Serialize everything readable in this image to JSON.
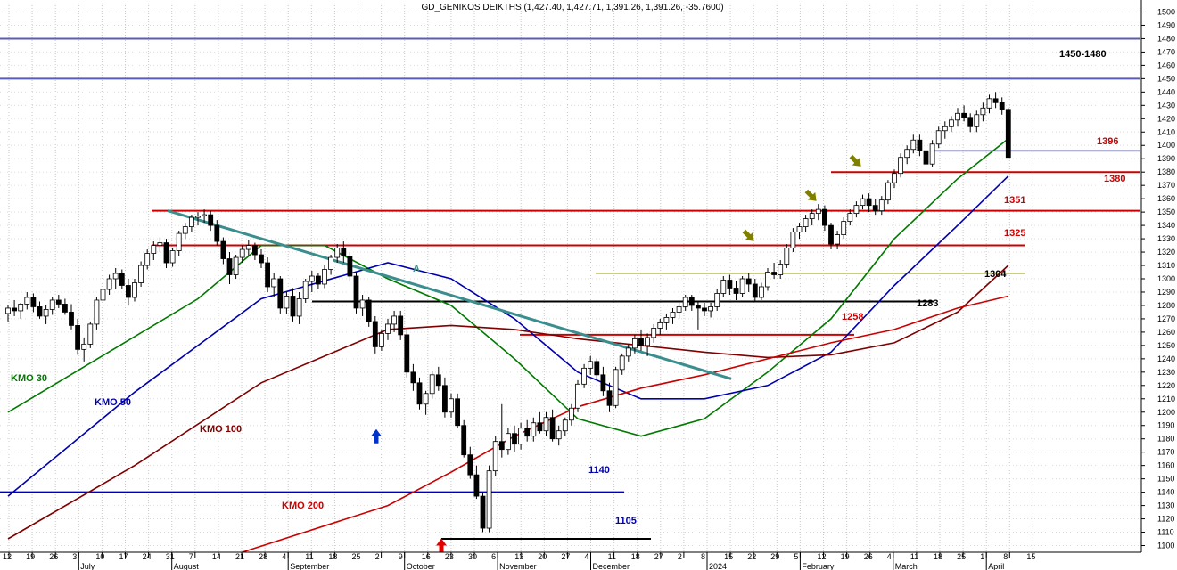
{
  "chart_data": {
    "type": "candlestick",
    "title": "GD_GENIKOS DEIKTHS (1,427.40, 1,427.71, 1,391.26, 1,391.26, -35.7600)",
    "ylim": [
      1095,
      1505
    ],
    "yticks": [
      1100,
      1110,
      1120,
      1130,
      1140,
      1150,
      1160,
      1170,
      1180,
      1190,
      1200,
      1210,
      1220,
      1230,
      1240,
      1250,
      1260,
      1270,
      1280,
      1290,
      1300,
      1310,
      1320,
      1330,
      1340,
      1350,
      1360,
      1370,
      1380,
      1390,
      1400,
      1410,
      1420,
      1430,
      1440,
      1450,
      1460,
      1470,
      1480,
      1490,
      1500
    ],
    "x_day_labels": [
      "12",
      "19",
      "26",
      "3",
      "10",
      "17",
      "24",
      "31",
      "7",
      "14",
      "21",
      "28",
      "4",
      "11",
      "18",
      "25",
      "2",
      "9",
      "16",
      "23",
      "30",
      "6",
      "13",
      "20",
      "27",
      "4",
      "11",
      "18",
      "27",
      "2",
      "8",
      "15",
      "22",
      "29",
      "5",
      "12",
      "19",
      "26",
      "4",
      "11",
      "18",
      "25",
      "1",
      "8",
      "15"
    ],
    "x_month_labels": [
      "July",
      "August",
      "September",
      "October",
      "November",
      "December",
      "2024",
      "February",
      "March",
      "April"
    ],
    "candles": [
      [
        1274,
        1280,
        1268,
        1278
      ],
      [
        1278,
        1284,
        1272,
        1276
      ],
      [
        1276,
        1282,
        1270,
        1281
      ],
      [
        1281,
        1290,
        1277,
        1286
      ],
      [
        1286,
        1289,
        1275,
        1279
      ],
      [
        1279,
        1283,
        1270,
        1272
      ],
      [
        1272,
        1280,
        1266,
        1277
      ],
      [
        1277,
        1286,
        1273,
        1284
      ],
      [
        1284,
        1288,
        1278,
        1281
      ],
      [
        1281,
        1285,
        1273,
        1275
      ],
      [
        1275,
        1281,
        1262,
        1265
      ],
      [
        1265,
        1270,
        1243,
        1247
      ],
      [
        1247,
        1256,
        1238,
        1251
      ],
      [
        1251,
        1268,
        1248,
        1266
      ],
      [
        1266,
        1286,
        1262,
        1284
      ],
      [
        1284,
        1296,
        1280,
        1292
      ],
      [
        1292,
        1303,
        1288,
        1300
      ],
      [
        1300,
        1308,
        1292,
        1304
      ],
      [
        1304,
        1307,
        1292,
        1295
      ],
      [
        1295,
        1300,
        1280,
        1286
      ],
      [
        1286,
        1300,
        1283,
        1297
      ],
      [
        1297,
        1313,
        1294,
        1310
      ],
      [
        1310,
        1322,
        1307,
        1319
      ],
      [
        1319,
        1328,
        1314,
        1325
      ],
      [
        1325,
        1331,
        1320,
        1327
      ],
      [
        1327,
        1330,
        1308,
        1312
      ],
      [
        1312,
        1323,
        1309,
        1321
      ],
      [
        1321,
        1336,
        1317,
        1334
      ],
      [
        1334,
        1342,
        1330,
        1339
      ],
      [
        1339,
        1348,
        1335,
        1346
      ],
      [
        1346,
        1350,
        1340,
        1347
      ],
      [
        1347,
        1352,
        1342,
        1348
      ],
      [
        1348,
        1351,
        1336,
        1340
      ],
      [
        1340,
        1344,
        1325,
        1328
      ],
      [
        1328,
        1331,
        1311,
        1315
      ],
      [
        1315,
        1320,
        1296,
        1303
      ],
      [
        1303,
        1318,
        1300,
        1316
      ],
      [
        1316,
        1325,
        1312,
        1322
      ],
      [
        1322,
        1329,
        1317,
        1325
      ],
      [
        1325,
        1327,
        1314,
        1318
      ],
      [
        1318,
        1322,
        1308,
        1312
      ],
      [
        1312,
        1316,
        1290,
        1294
      ],
      [
        1294,
        1304,
        1286,
        1300
      ],
      [
        1300,
        1302,
        1274,
        1278
      ],
      [
        1278,
        1290,
        1274,
        1287
      ],
      [
        1287,
        1293,
        1268,
        1272
      ],
      [
        1272,
        1290,
        1266,
        1285
      ],
      [
        1285,
        1300,
        1282,
        1298
      ],
      [
        1298,
        1306,
        1290,
        1302
      ],
      [
        1302,
        1304,
        1292,
        1296
      ],
      [
        1296,
        1310,
        1293,
        1307
      ],
      [
        1307,
        1318,
        1303,
        1316
      ],
      [
        1316,
        1326,
        1312,
        1323
      ],
      [
        1323,
        1328,
        1312,
        1317
      ],
      [
        1317,
        1320,
        1298,
        1302
      ],
      [
        1302,
        1305,
        1274,
        1278
      ],
      [
        1278,
        1288,
        1272,
        1284
      ],
      [
        1284,
        1286,
        1264,
        1268
      ],
      [
        1268,
        1272,
        1244,
        1249
      ],
      [
        1249,
        1262,
        1246,
        1259
      ],
      [
        1259,
        1270,
        1254,
        1266
      ],
      [
        1266,
        1276,
        1260,
        1272
      ],
      [
        1272,
        1276,
        1254,
        1258
      ],
      [
        1258,
        1262,
        1226,
        1230
      ],
      [
        1230,
        1236,
        1216,
        1222
      ],
      [
        1222,
        1226,
        1202,
        1206
      ],
      [
        1206,
        1216,
        1198,
        1214
      ],
      [
        1214,
        1231,
        1210,
        1228
      ],
      [
        1228,
        1234,
        1216,
        1220
      ],
      [
        1220,
        1226,
        1196,
        1200
      ],
      [
        1200,
        1214,
        1196,
        1210
      ],
      [
        1210,
        1214,
        1188,
        1190
      ],
      [
        1190,
        1194,
        1166,
        1168
      ],
      [
        1168,
        1174,
        1150,
        1153
      ],
      [
        1153,
        1160,
        1135,
        1137
      ],
      [
        1137,
        1140,
        1110,
        1113
      ],
      [
        1113,
        1160,
        1110,
        1156
      ],
      [
        1156,
        1182,
        1152,
        1178
      ],
      [
        1178,
        1206,
        1166,
        1172
      ],
      [
        1172,
        1188,
        1168,
        1184
      ],
      [
        1184,
        1190,
        1170,
        1176
      ],
      [
        1176,
        1192,
        1172,
        1188
      ],
      [
        1188,
        1194,
        1178,
        1182
      ],
      [
        1182,
        1196,
        1178,
        1192
      ],
      [
        1192,
        1200,
        1184,
        1186
      ],
      [
        1186,
        1200,
        1182,
        1196
      ],
      [
        1196,
        1202,
        1178,
        1180
      ],
      [
        1180,
        1190,
        1175,
        1186
      ],
      [
        1186,
        1196,
        1182,
        1194
      ],
      [
        1194,
        1206,
        1190,
        1203
      ],
      [
        1203,
        1224,
        1200,
        1221
      ],
      [
        1221,
        1236,
        1218,
        1233
      ],
      [
        1233,
        1242,
        1228,
        1238
      ],
      [
        1238,
        1240,
        1224,
        1228
      ],
      [
        1228,
        1234,
        1212,
        1216
      ],
      [
        1216,
        1222,
        1200,
        1205
      ],
      [
        1205,
        1234,
        1203,
        1232
      ],
      [
        1232,
        1244,
        1228,
        1242
      ],
      [
        1242,
        1251,
        1238,
        1248
      ],
      [
        1248,
        1258,
        1244,
        1255
      ],
      [
        1255,
        1262,
        1246,
        1250
      ],
      [
        1250,
        1259,
        1242,
        1256
      ],
      [
        1256,
        1266,
        1252,
        1263
      ],
      [
        1263,
        1270,
        1258,
        1267
      ],
      [
        1267,
        1274,
        1262,
        1271
      ],
      [
        1271,
        1278,
        1266,
        1275
      ],
      [
        1275,
        1282,
        1270,
        1279
      ],
      [
        1279,
        1288,
        1276,
        1286
      ],
      [
        1286,
        1288,
        1276,
        1280
      ],
      [
        1280,
        1283,
        1262,
        1278
      ],
      [
        1278,
        1282,
        1272,
        1276
      ],
      [
        1276,
        1282,
        1271,
        1279
      ],
      [
        1279,
        1292,
        1276,
        1289
      ],
      [
        1289,
        1302,
        1286,
        1299
      ],
      [
        1299,
        1303,
        1288,
        1293
      ],
      [
        1293,
        1298,
        1284,
        1289
      ],
      [
        1289,
        1302,
        1286,
        1300
      ],
      [
        1300,
        1304,
        1290,
        1296
      ],
      [
        1296,
        1300,
        1283,
        1286
      ],
      [
        1286,
        1297,
        1284,
        1294
      ],
      [
        1294,
        1308,
        1291,
        1305
      ],
      [
        1305,
        1312,
        1300,
        1303
      ],
      [
        1303,
        1314,
        1300,
        1311
      ],
      [
        1311,
        1326,
        1308,
        1323
      ],
      [
        1323,
        1338,
        1320,
        1335
      ],
      [
        1335,
        1342,
        1330,
        1339
      ],
      [
        1339,
        1348,
        1335,
        1345
      ],
      [
        1345,
        1352,
        1340,
        1349
      ],
      [
        1349,
        1356,
        1344,
        1352
      ],
      [
        1352,
        1355,
        1336,
        1340
      ],
      [
        1340,
        1342,
        1322,
        1326
      ],
      [
        1326,
        1336,
        1322,
        1333
      ],
      [
        1333,
        1346,
        1330,
        1343
      ],
      [
        1343,
        1352,
        1340,
        1349
      ],
      [
        1349,
        1358,
        1346,
        1355
      ],
      [
        1355,
        1363,
        1352,
        1360
      ],
      [
        1360,
        1364,
        1350,
        1355
      ],
      [
        1355,
        1360,
        1348,
        1351
      ],
      [
        1351,
        1362,
        1348,
        1359
      ],
      [
        1359,
        1374,
        1356,
        1372
      ],
      [
        1372,
        1382,
        1368,
        1379
      ],
      [
        1379,
        1394,
        1376,
        1391
      ],
      [
        1391,
        1400,
        1386,
        1397
      ],
      [
        1397,
        1408,
        1394,
        1404
      ],
      [
        1404,
        1408,
        1392,
        1396
      ],
      [
        1396,
        1402,
        1383,
        1386
      ],
      [
        1386,
        1404,
        1384,
        1401
      ],
      [
        1401,
        1414,
        1398,
        1411
      ],
      [
        1411,
        1418,
        1405,
        1414
      ],
      [
        1414,
        1422,
        1410,
        1419
      ],
      [
        1419,
        1428,
        1414,
        1424
      ],
      [
        1424,
        1430,
        1418,
        1421
      ],
      [
        1421,
        1424,
        1410,
        1414
      ],
      [
        1414,
        1426,
        1410,
        1423
      ],
      [
        1423,
        1432,
        1418,
        1428
      ],
      [
        1428,
        1438,
        1424,
        1435
      ],
      [
        1435,
        1440,
        1428,
        1432
      ],
      [
        1432,
        1436,
        1423,
        1427
      ],
      [
        1427,
        1428,
        1391,
        1391
      ]
    ],
    "moving_averages": [
      {
        "name": "KMO 30",
        "color": "#007a00",
        "values": [
          [
            0,
            1200
          ],
          [
            30,
            1285
          ],
          [
            40,
            1325
          ],
          [
            50,
            1325
          ],
          [
            60,
            1300
          ],
          [
            70,
            1280
          ],
          [
            80,
            1240
          ],
          [
            90,
            1195
          ],
          [
            100,
            1182
          ],
          [
            110,
            1195
          ],
          [
            120,
            1230
          ],
          [
            130,
            1270
          ],
          [
            140,
            1330
          ],
          [
            150,
            1375
          ],
          [
            158,
            1405
          ]
        ]
      },
      {
        "name": "KMO 50",
        "color": "#0000b0",
        "values": [
          [
            0,
            1137
          ],
          [
            20,
            1215
          ],
          [
            40,
            1285
          ],
          [
            60,
            1312
          ],
          [
            70,
            1300
          ],
          [
            80,
            1270
          ],
          [
            90,
            1230
          ],
          [
            100,
            1210
          ],
          [
            110,
            1210
          ],
          [
            120,
            1220
          ],
          [
            130,
            1245
          ],
          [
            140,
            1295
          ],
          [
            150,
            1340
          ],
          [
            158,
            1377
          ]
        ]
      },
      {
        "name": "KMO 100",
        "color": "#800000",
        "values": [
          [
            0,
            1105
          ],
          [
            20,
            1160
          ],
          [
            40,
            1222
          ],
          [
            60,
            1262
          ],
          [
            70,
            1265
          ],
          [
            80,
            1262
          ],
          [
            90,
            1255
          ],
          [
            100,
            1250
          ],
          [
            110,
            1245
          ],
          [
            120,
            1241
          ],
          [
            130,
            1243
          ],
          [
            140,
            1252
          ],
          [
            150,
            1275
          ],
          [
            158,
            1310
          ]
        ]
      },
      {
        "name": "KMO 200",
        "color": "#cc0000",
        "values": [
          [
            37,
            1095
          ],
          [
            60,
            1130
          ],
          [
            70,
            1155
          ],
          [
            80,
            1182
          ],
          [
            90,
            1204
          ],
          [
            100,
            1218
          ],
          [
            110,
            1228
          ],
          [
            120,
            1240
          ],
          [
            130,
            1252
          ],
          [
            140,
            1262
          ],
          [
            150,
            1278
          ],
          [
            158,
            1287
          ]
        ]
      }
    ],
    "horizontal_levels": [
      {
        "label": "1450-1480",
        "value": 1480,
        "color": "#5b5bb8",
        "x0": 0,
        "x1": 1278
      },
      {
        "label": "",
        "value": 1450,
        "color": "#5b5bb8",
        "x0": 0,
        "x1": 1278
      },
      {
        "label": "1396",
        "value": 1396,
        "color": "#9999cc",
        "x0": 1046,
        "x1": 1278
      },
      {
        "label": "1380",
        "value": 1380,
        "color": "#cc0000",
        "x0": 932,
        "x1": 1278
      },
      {
        "label": "1351",
        "value": 1351,
        "color": "#cc0000",
        "x0": 170,
        "x1": 1278
      },
      {
        "label": "1325",
        "value": 1325,
        "color": "#cc0000",
        "x0": 170,
        "x1": 1150
      },
      {
        "label": "1304",
        "value": 1304,
        "color": "#999900",
        "x0": 668,
        "x1": 1150
      },
      {
        "label": "1283",
        "value": 1283,
        "color": "#000000",
        "x0": 350,
        "x1": 1048
      },
      {
        "label": "1258",
        "value": 1258,
        "color": "#cc0000",
        "x0": 583,
        "x1": 958
      },
      {
        "label": "1140",
        "value": 1140,
        "color": "#0000b0",
        "x0": 0,
        "x1": 700
      },
      {
        "label": "1105",
        "value": 1105,
        "color": "#000000",
        "x0": 495,
        "x1": 730
      }
    ],
    "trendline": {
      "label": "A",
      "from": [
        1351,
        188
      ],
      "to": [
        1225,
        820
      ],
      "color": "#3b8e8e"
    },
    "annotations": [
      {
        "type": "arrow-up",
        "color": "#0033cc",
        "value": 1178,
        "x": 422
      },
      {
        "type": "arrow-up",
        "color": "#e00000",
        "value": 1096,
        "x": 495
      },
      {
        "type": "arrow-down-right",
        "color": "#808000",
        "value": 1332,
        "x": 840
      },
      {
        "type": "arrow-down-right",
        "color": "#808000",
        "value": 1362,
        "x": 910
      },
      {
        "type": "arrow-down-right",
        "color": "#808000",
        "value": 1388,
        "x": 960
      }
    ]
  }
}
